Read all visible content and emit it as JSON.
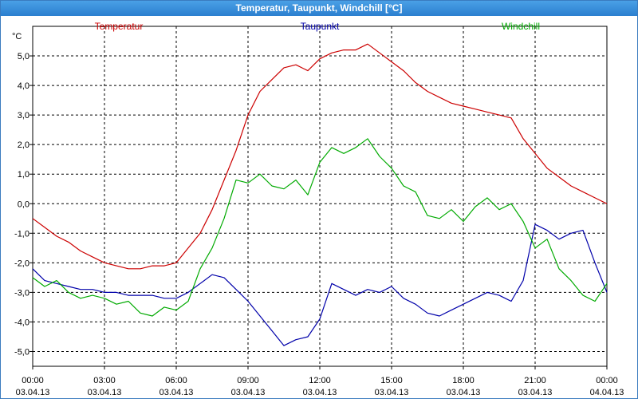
{
  "window": {
    "title": "Temperatur, Taupunkt, Windchill [°C]"
  },
  "colors": {
    "temp": "#cc0000",
    "dew": "#0000aa",
    "wind": "#00aa00",
    "grid": "#000000"
  },
  "chart_data": {
    "type": "line",
    "title": "Temperatur, Taupunkt, Windchill [°C]",
    "ylabel": "°C",
    "ylim": [
      -5.5,
      6.0
    ],
    "y_ticks": [
      "5,0",
      "4,0",
      "3,0",
      "2,0",
      "1,0",
      "0,0",
      "-1,0",
      "-2,0",
      "-3,0",
      "-4,0",
      "-5,0"
    ],
    "y_tick_values": [
      5,
      4,
      3,
      2,
      1,
      0,
      -1,
      -2,
      -3,
      -4,
      -5
    ],
    "x_hours": [
      0,
      3,
      6,
      9,
      12,
      15,
      18,
      21,
      24
    ],
    "x_tick_times": [
      "00:00",
      "03:00",
      "06:00",
      "09:00",
      "12:00",
      "15:00",
      "18:00",
      "21:00",
      "00:00"
    ],
    "x_tick_dates": [
      "03.04.13",
      "03.04.13",
      "03.04.13",
      "03.04.13",
      "03.04.13",
      "03.04.13",
      "03.04.13",
      "03.04.13",
      "04.04.13"
    ],
    "grid": true,
    "legend": [
      "Temperatur",
      "Taupunkt",
      "Windchill"
    ],
    "legend_placement": "top",
    "series": [
      {
        "name": "Temperatur",
        "x": [
          0,
          0.5,
          1,
          1.5,
          2,
          2.5,
          3,
          3.5,
          4,
          4.5,
          5,
          5.5,
          6,
          6.5,
          7,
          7.5,
          8,
          8.5,
          9,
          9.5,
          10,
          10.5,
          11,
          11.5,
          12,
          12.5,
          13,
          13.5,
          14,
          14.5,
          15,
          15.5,
          16,
          16.5,
          17,
          17.5,
          18,
          18.5,
          19,
          19.5,
          20,
          20.5,
          21,
          21.5,
          22,
          22.5,
          23,
          23.5,
          24
        ],
        "values": [
          -0.5,
          -0.8,
          -1.1,
          -1.3,
          -1.6,
          -1.8,
          -2.0,
          -2.1,
          -2.2,
          -2.2,
          -2.1,
          -2.1,
          -2.0,
          -1.5,
          -1.0,
          -0.2,
          0.8,
          1.8,
          3.0,
          3.8,
          4.2,
          4.6,
          4.7,
          4.5,
          4.9,
          5.1,
          5.2,
          5.2,
          5.4,
          5.1,
          4.8,
          4.5,
          4.1,
          3.8,
          3.6,
          3.4,
          3.3,
          3.2,
          3.1,
          3.0,
          2.9,
          2.2,
          1.7,
          1.2,
          0.9,
          0.6,
          0.4,
          0.2,
          0.0
        ]
      },
      {
        "name": "Taupunkt",
        "x": [
          0,
          0.5,
          1,
          1.5,
          2,
          2.5,
          3,
          3.5,
          4,
          4.5,
          5,
          5.5,
          6,
          6.5,
          7,
          7.5,
          8,
          8.5,
          9,
          9.5,
          10,
          10.5,
          11,
          11.5,
          12,
          12.5,
          13,
          13.5,
          14,
          14.5,
          15,
          15.5,
          16,
          16.5,
          17,
          17.5,
          18,
          18.5,
          19,
          19.5,
          20,
          20.5,
          21,
          21.5,
          22,
          22.5,
          23,
          23.5,
          24
        ],
        "values": [
          -2.2,
          -2.6,
          -2.7,
          -2.8,
          -2.9,
          -2.9,
          -3.0,
          -3.0,
          -3.1,
          -3.1,
          -3.1,
          -3.2,
          -3.2,
          -3.0,
          -2.7,
          -2.4,
          -2.5,
          -2.9,
          -3.3,
          -3.8,
          -4.3,
          -4.8,
          -4.6,
          -4.5,
          -3.9,
          -2.7,
          -2.9,
          -3.1,
          -2.9,
          -3.0,
          -2.8,
          -3.2,
          -3.4,
          -3.7,
          -3.8,
          -3.6,
          -3.4,
          -3.2,
          -3.0,
          -3.1,
          -3.3,
          -2.6,
          -0.7,
          -0.9,
          -1.2,
          -1.0,
          -0.9,
          -2.0,
          -3.0
        ]
      },
      {
        "name": "Windchill",
        "x": [
          0,
          0.5,
          1,
          1.5,
          2,
          2.5,
          3,
          3.5,
          4,
          4.5,
          5,
          5.5,
          6,
          6.5,
          7,
          7.5,
          8,
          8.5,
          9,
          9.5,
          10,
          10.5,
          11,
          11.5,
          12,
          12.5,
          13,
          13.5,
          14,
          14.5,
          15,
          15.5,
          16,
          16.5,
          17,
          17.5,
          18,
          18.5,
          19,
          19.5,
          20,
          20.5,
          21,
          21.5,
          22,
          22.5,
          23,
          23.5,
          24
        ],
        "values": [
          -2.5,
          -2.8,
          -2.6,
          -3.0,
          -3.2,
          -3.1,
          -3.2,
          -3.4,
          -3.3,
          -3.7,
          -3.8,
          -3.5,
          -3.6,
          -3.3,
          -2.2,
          -1.5,
          -0.5,
          0.8,
          0.7,
          1.0,
          0.6,
          0.5,
          0.8,
          0.3,
          1.4,
          1.9,
          1.7,
          1.9,
          2.2,
          1.6,
          1.2,
          0.6,
          0.4,
          -0.4,
          -0.5,
          -0.2,
          -0.6,
          -0.1,
          0.2,
          -0.2,
          0.0,
          -0.6,
          -1.5,
          -1.2,
          -2.2,
          -2.6,
          -3.1,
          -3.3,
          -2.7
        ]
      }
    ]
  }
}
